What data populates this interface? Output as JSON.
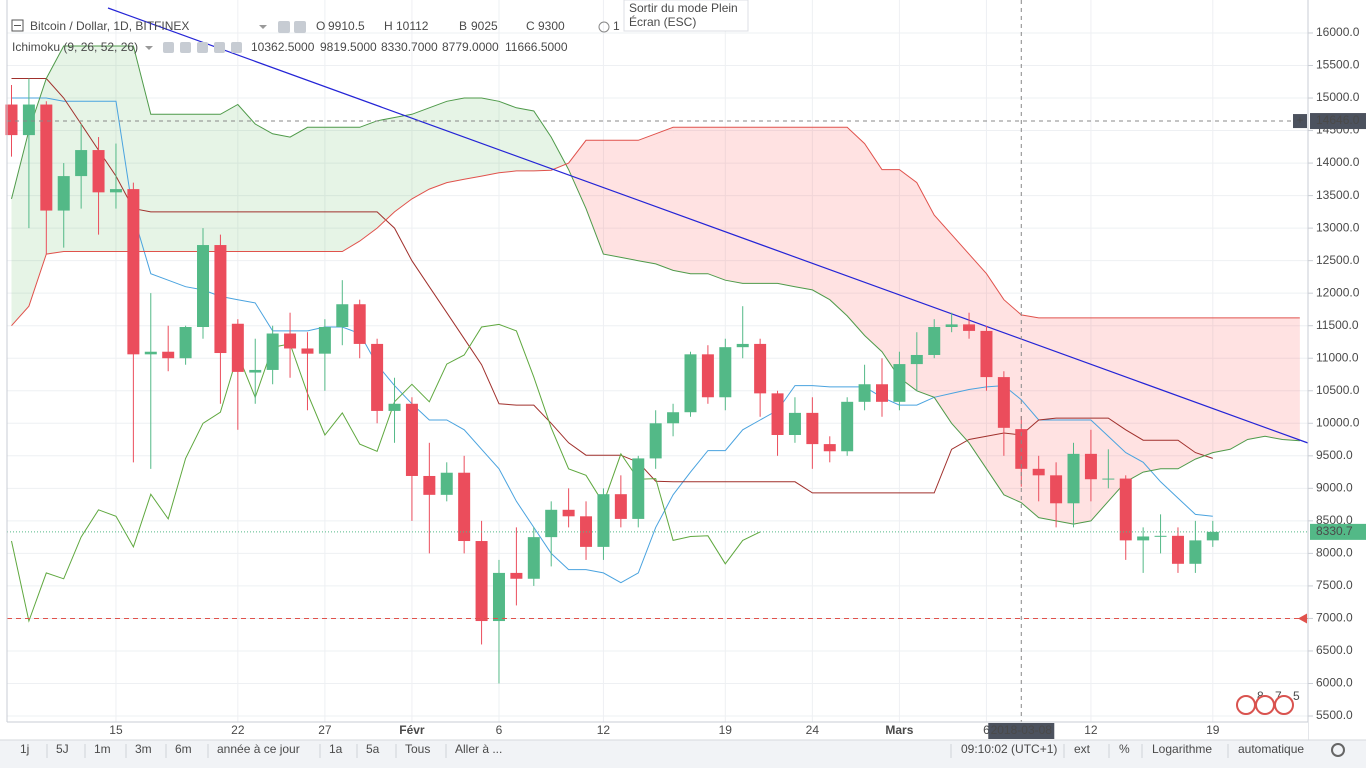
{
  "header": {
    "symbol": "Bitcoin / Dollar, 1D, BITFINEX",
    "ohlc_letters": [
      "O",
      "H",
      "B",
      "C"
    ],
    "alerts": "1"
  },
  "tooltip": [
    "Sortir du mode Plein",
    "Écran (ESC)"
  ],
  "indicator": {
    "label": "Ichimoku (9, 26, 52, 26)",
    "values": [
      "10362.5000",
      "9819.5000",
      "8330.7000",
      "8779.0000",
      "11666.5000"
    ]
  },
  "toolbar": {
    "ranges": [
      "1j",
      "5J",
      "1m",
      "3m",
      "6m",
      "année à ce jour",
      "1a",
      "5a",
      "Tous",
      "Aller à ..."
    ],
    "right": [
      "09:10:02 (UTC+1)",
      "ext",
      "%",
      "Logarithme",
      "automatique"
    ]
  },
  "chart_data": {
    "type": "candlestick",
    "categories": [
      null,
      null,
      null,
      null,
      null,
      null,
      "15",
      null,
      null,
      null,
      null,
      null,
      null,
      "22",
      null,
      null,
      null,
      null,
      "27",
      null,
      null,
      null,
      null,
      "Févr",
      null,
      null,
      null,
      null,
      "6",
      null,
      null,
      null,
      null,
      null,
      "12",
      null,
      null,
      null,
      null,
      null,
      null,
      "19",
      null,
      null,
      null,
      null,
      "24",
      null,
      null,
      null,
      null,
      "Mars",
      null,
      null,
      null,
      null,
      "6",
      null,
      null,
      null,
      null,
      null,
      "12",
      null,
      null,
      null,
      null,
      null,
      null,
      "19",
      null,
      null,
      null,
      null,
      null
    ],
    "open": [
      14900,
      14430,
      14900,
      13270,
      13800,
      14200,
      13550,
      13600,
      11060,
      11100,
      11000,
      11480,
      12740,
      11530,
      10780,
      10820,
      11380,
      11150,
      11070,
      11480,
      11830,
      11220,
      10190,
      10300,
      9190,
      8900,
      9240,
      8190,
      6960,
      7700,
      7610,
      8250,
      8670,
      8570,
      8100,
      8910,
      8530,
      9460,
      10000,
      10170,
      11060,
      10400,
      11170,
      11220,
      10460,
      9820,
      10160,
      9680,
      9570,
      10330,
      10600,
      10330,
      10910,
      11050,
      11480,
      11520,
      11420,
      10710,
      9910.5,
      9300,
      9200,
      8770,
      9530,
      9140,
      9150,
      8200,
      8260,
      8270,
      7840,
      8200,
      null,
      null,
      null,
      null,
      null
    ],
    "high": [
      15200,
      15300,
      14950,
      14000,
      14600,
      14400,
      14300,
      13700,
      12000,
      11500,
      11500,
      13000,
      12900,
      11600,
      11300,
      11500,
      11700,
      11400,
      11600,
      12200,
      11900,
      11300,
      10700,
      10400,
      9700,
      9400,
      9500,
      8500,
      7900,
      8400,
      8400,
      8800,
      9000,
      8800,
      9000,
      9200,
      9500,
      10200,
      10300,
      11100,
      11200,
      11300,
      11800,
      11300,
      10500,
      10400,
      10400,
      9800,
      10400,
      10900,
      11000,
      11100,
      11400,
      11600,
      11700,
      11700,
      11500,
      10800,
      10112,
      9500,
      9400,
      9700,
      9900,
      9600,
      9200,
      8400,
      8600,
      8400,
      8500,
      8500,
      null,
      null,
      null,
      null,
      null
    ],
    "low": [
      14100,
      13000,
      12600,
      12700,
      13300,
      12900,
      13300,
      9400,
      9300,
      10800,
      10900,
      11300,
      10300,
      9900,
      10300,
      10600,
      10700,
      10200,
      10500,
      11200,
      11000,
      10000,
      9700,
      8500,
      8000,
      8800,
      8000,
      6600,
      6000,
      7200,
      7500,
      7800,
      8400,
      7900,
      7900,
      8400,
      8400,
      9300,
      9800,
      10100,
      10300,
      10200,
      11000,
      10100,
      9500,
      9700,
      9300,
      9400,
      9500,
      10200,
      10100,
      10200,
      10500,
      11000,
      11400,
      11300,
      10500,
      9500,
      9025,
      8800,
      8400,
      8400,
      8800,
      9000,
      7900,
      7700,
      8000,
      7700,
      7700,
      8100,
      null,
      null,
      null,
      null,
      null
    ],
    "close": [
      14430,
      14900,
      13270,
      13800,
      14200,
      13550,
      13600,
      11060,
      11100,
      11000,
      11480,
      12740,
      11080,
      10790,
      10820,
      11380,
      11150,
      11070,
      11480,
      11830,
      11220,
      10190,
      10300,
      9190,
      8900,
      9240,
      8190,
      6960,
      7700,
      7610,
      8250,
      8670,
      8570,
      8100,
      8910,
      8530,
      9460,
      10000,
      10170,
      11060,
      10400,
      11170,
      11220,
      10460,
      9820,
      10160,
      9680,
      9570,
      10330,
      10600,
      10330,
      10910,
      11050,
      11480,
      11520,
      11420,
      10710,
      9930,
      9300,
      9200,
      8770,
      9530,
      9140,
      9150,
      8200,
      8260,
      8270,
      7840,
      8200,
      8330.7,
      null,
      null,
      null,
      null,
      null
    ],
    "up_color": "#53b987",
    "down_color": "#eb4d5c",
    "lines": [
      {
        "color": "#4aa3df",
        "values": [
          15000,
          15000,
          15000,
          14950,
          14950,
          14950,
          14950,
          13200,
          12300,
          12200,
          12100,
          12050,
          11950,
          11900,
          11850,
          11420,
          11420,
          11420,
          11480,
          11480,
          11380,
          10900,
          10580,
          10300,
          10050,
          10050,
          9900,
          9600,
          9300,
          8800,
          8400,
          8000,
          7750,
          7750,
          7700,
          7550,
          7700,
          8400,
          8900,
          9250,
          9580,
          9580,
          9900,
          10050,
          10200,
          10580,
          10580,
          10560,
          10560,
          10560,
          10400,
          10280,
          10280,
          10400,
          10460,
          10520,
          10560,
          10580,
          10362.5,
          10050,
          10050,
          10050,
          10050,
          9800,
          9550,
          9400,
          9100,
          8850,
          8600,
          8570,
          null,
          null,
          null,
          null,
          null
        ]
      },
      {
        "color": "#a0302c",
        "values": [
          15300,
          15300,
          15300,
          15000,
          14600,
          14200,
          13800,
          13300,
          13250,
          13250,
          13250,
          13250,
          13250,
          13250,
          13250,
          13250,
          13250,
          13250,
          13250,
          13250,
          13250,
          13250,
          13000,
          12500,
          12100,
          11700,
          11300,
          10900,
          10300,
          10280,
          10280,
          10000,
          9700,
          9510,
          9510,
          9510,
          9400,
          9110,
          9100,
          9100,
          9100,
          9100,
          9100,
          9100,
          9100,
          9100,
          8930,
          8930,
          8930,
          8930,
          8930,
          8930,
          8930,
          8930,
          9600,
          9750,
          9800,
          9850,
          9819.5,
          10050,
          10080,
          10080,
          10080,
          10080,
          9900,
          9740,
          9740,
          9740,
          9550,
          9460,
          null,
          null,
          null,
          null,
          null
        ]
      },
      {
        "color": "#5fa83f",
        "values": [
          8190,
          6960,
          7700,
          7610,
          8250,
          8670,
          8570,
          8100,
          8910,
          8530,
          9460,
          10000,
          10170,
          11060,
          10400,
          11170,
          11220,
          10460,
          9820,
          10160,
          9680,
          9570,
          10330,
          10600,
          10330,
          10910,
          11050,
          11480,
          11520,
          11420,
          10710,
          9930,
          9300,
          9200,
          8770,
          9530,
          9140,
          9150,
          8200,
          8260,
          8270,
          7840,
          8200,
          8330.7,
          null,
          null,
          null,
          null,
          null,
          null,
          null,
          null,
          null,
          null,
          null,
          null,
          null,
          null,
          null,
          null,
          null,
          null,
          null,
          null,
          null,
          null,
          null,
          null,
          null,
          null,
          null,
          null,
          null,
          null,
          null
        ]
      },
      {
        "color": "#4f9a4a",
        "values": [
          13450,
          14500,
          15300,
          15800,
          15800,
          15800,
          15800,
          15800,
          14750,
          14750,
          14750,
          14750,
          14750,
          14900,
          14600,
          14450,
          14400,
          14550,
          14550,
          14550,
          14550,
          14650,
          14700,
          14750,
          14850,
          14950,
          15000,
          15000,
          14950,
          14850,
          14800,
          14400,
          13900,
          13300,
          12600,
          12550,
          12500,
          12450,
          12350,
          12300,
          12300,
          12200,
          12150,
          12150,
          12150,
          12100,
          12050,
          11900,
          11650,
          11350,
          11100,
          10700,
          10500,
          10400,
          10000,
          9700,
          9300,
          8900,
          8779,
          8550,
          8500,
          8450,
          8500,
          8800,
          9100,
          9250,
          9300,
          9300,
          9450,
          9550,
          9600,
          9750,
          9800,
          9750,
          9730
        ]
      },
      {
        "color": "#e0524c",
        "values": [
          11500,
          11800,
          12600,
          12640,
          12640,
          12640,
          12640,
          12640,
          12640,
          12640,
          12640,
          12640,
          12640,
          12640,
          12640,
          12640,
          12640,
          12640,
          12640,
          12640,
          12800,
          13000,
          13250,
          13450,
          13600,
          13700,
          13750,
          13800,
          13850,
          13880,
          13880,
          13890,
          14000,
          14350,
          14350,
          14350,
          14350,
          14450,
          14550,
          14550,
          14550,
          14550,
          14550,
          14550,
          14550,
          14550,
          14550,
          14550,
          14550,
          14300,
          13900,
          13900,
          13700,
          13200,
          12900,
          12600,
          12300,
          11900,
          11666.5,
          11620,
          11620,
          11620,
          11620,
          11620,
          11620,
          11620,
          11620,
          11620,
          11620,
          11620,
          11620,
          11620,
          11620,
          11620,
          11620
        ]
      }
    ],
    "cloud_colors": {
      "up": "rgba(76,175,80,0.14)",
      "down": "rgba(255,82,82,0.17)"
    },
    "ylim": [
      5408,
      16430
    ],
    "yticks": [
      {
        "value": 5500,
        "label": "5500.0"
      },
      {
        "value": 6000,
        "label": "6000.0"
      },
      {
        "value": 6500,
        "label": "6500.0"
      },
      {
        "value": 7000,
        "label": "7000.0"
      },
      {
        "value": 7500,
        "label": "7500.0"
      },
      {
        "value": 8000,
        "label": "8000.0"
      },
      {
        "value": 8500,
        "label": "8500.0"
      },
      {
        "value": 9000,
        "label": "9000.0"
      },
      {
        "value": 9500,
        "label": "9500.0"
      },
      {
        "value": 10000,
        "label": "10000.0"
      },
      {
        "value": 10500,
        "label": "10500.0"
      },
      {
        "value": 11000,
        "label": "11000.0"
      },
      {
        "value": 11500,
        "label": "11500.0"
      },
      {
        "value": 12000,
        "label": "12000.0"
      },
      {
        "value": 12500,
        "label": "12500.0"
      },
      {
        "value": 13000,
        "label": "13000.0"
      },
      {
        "value": 13500,
        "label": "13500.0"
      },
      {
        "value": 14000,
        "label": "14000.0"
      },
      {
        "value": 14500,
        "label": "14500.0"
      },
      {
        "value": 15000,
        "label": "15000.0"
      },
      {
        "value": 15500,
        "label": "15500.0"
      },
      {
        "value": 16000,
        "label": "16000.0"
      }
    ],
    "grid": true,
    "crosshair": {
      "x_label": "2018-03-08",
      "y": {
        "value": 14646,
        "label": "14646.0"
      }
    },
    "alert_level": 7000,
    "alert_color": "#e0524c",
    "badge": [
      "8",
      "7",
      "5"
    ]
  }
}
